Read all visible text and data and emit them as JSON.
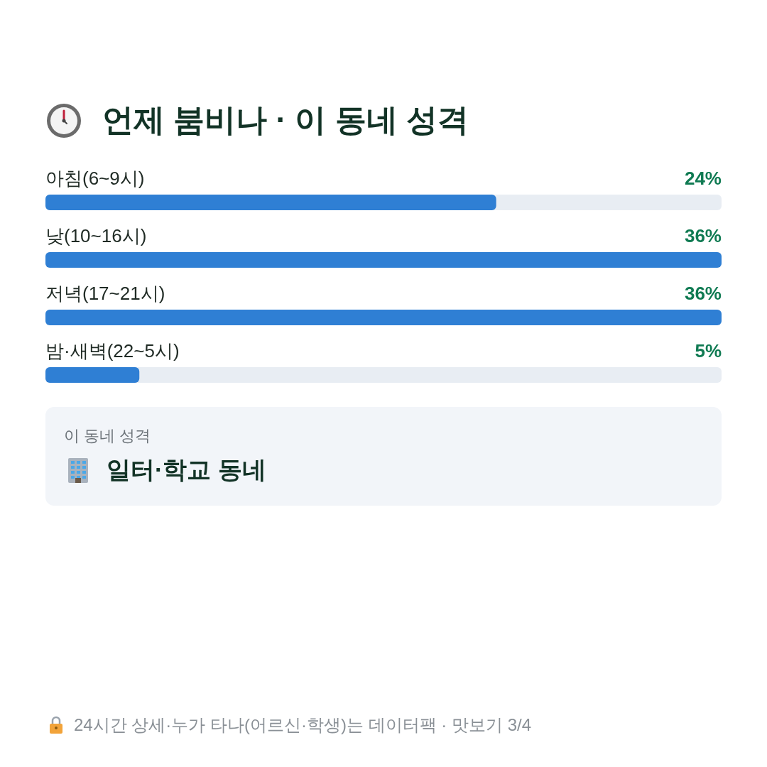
{
  "chart_data": {
    "type": "bar",
    "orientation": "horizontal",
    "title": "언제 붐비나 · 이 동네 성격",
    "categories": [
      "아침(6~9시)",
      "낮(10~16시)",
      "저녁(17~21시)",
      "밤·새벽(22~5시)"
    ],
    "values": [
      24,
      36,
      36,
      5
    ],
    "color": "#2f7fd4",
    "value_labels": [
      "24%",
      "36%",
      "36%",
      "5%"
    ],
    "annotations": [
      "이 동네 성격",
      "일터·학교 동네",
      "24시간 상세·누가 타나(어르신·학생)는 데이터팩 · 맛보기 3/4"
    ]
  }
}
